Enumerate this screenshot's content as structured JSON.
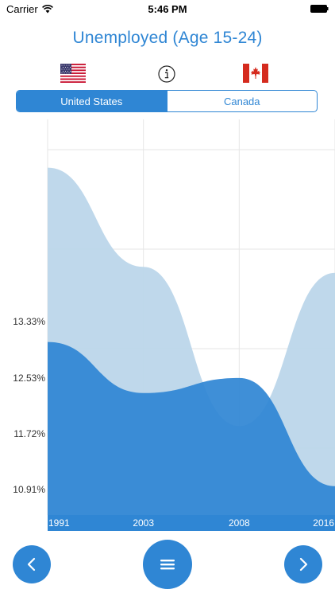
{
  "status_bar": {
    "carrier": "Carrier",
    "time": "5:46 PM"
  },
  "header": {
    "title": "Unemployed (Age 15-24)"
  },
  "flags": {
    "left": "us-flag-icon",
    "right": "canada-flag-icon",
    "info": "info-icon"
  },
  "segments": [
    {
      "label": "United States",
      "selected": true
    },
    {
      "label": "Canada",
      "selected": false
    }
  ],
  "colors": {
    "accent": "#2f86d4",
    "series_us": "#2f86d4",
    "series_canada": "#bcd6ea"
  },
  "chart_data": {
    "type": "area",
    "x": [
      "1991",
      "2003",
      "2008",
      "2016"
    ],
    "xlabels": [
      "1991",
      "2003",
      "2008",
      "2016"
    ],
    "series": [
      {
        "values": [
          16.2,
          14.55,
          11.9,
          14.45
        ]
      },
      {
        "values": [
          13.3,
          12.45,
          12.7,
          10.9
        ]
      }
    ],
    "yticks": [
      "13.33%",
      "12.53%",
      "11.72%",
      "10.91%"
    ],
    "ylim": [
      10.5,
      16.5
    ],
    "grid": true
  },
  "navigation": {
    "prev_icon": "chevron-left-icon",
    "menu_icon": "menu-icon",
    "next_icon": "chevron-right-icon"
  }
}
